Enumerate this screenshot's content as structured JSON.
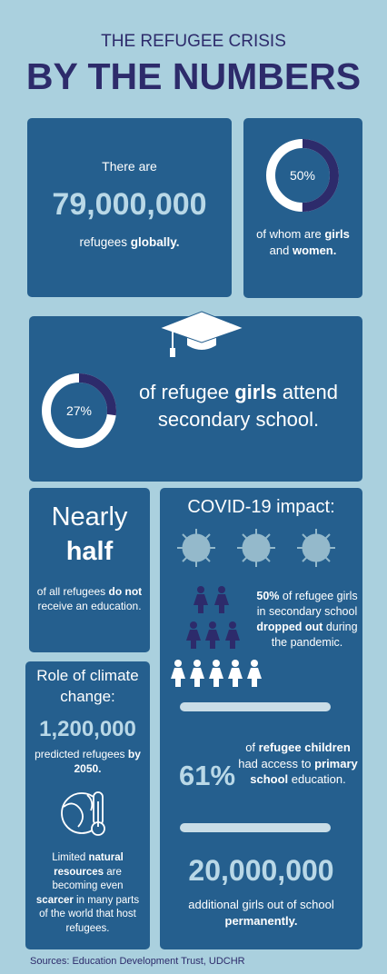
{
  "header": {
    "subtitle": "THE REFUGEE CRISIS",
    "title": "BY THE NUMBERS"
  },
  "refugees": {
    "intro": "There are",
    "number": "79,000,000",
    "text": [
      "refugees",
      "globally."
    ]
  },
  "women_share": {
    "donut": {
      "value": 50,
      "label": "50%"
    },
    "text": [
      "of whom are",
      "girls",
      "and",
      "women."
    ]
  },
  "secondary": {
    "donut": {
      "value": 27,
      "label": "27%"
    },
    "text": [
      "of refugee",
      "girls",
      "attend secondary school."
    ]
  },
  "education": {
    "headline": [
      "Nearly",
      "half"
    ],
    "text": [
      "of all refugees",
      "do not",
      "receive an education."
    ]
  },
  "climate": {
    "heading": "Role of climate change:",
    "number": "1,200,000",
    "text": [
      "predicted refugees",
      "by 2050."
    ],
    "note": [
      "Limited",
      "natural resources",
      "are becoming even",
      "scarcer",
      "in many parts of the world that host refugees."
    ]
  },
  "covid": {
    "heading": "COVID-19 impact:",
    "dropout": [
      "50%",
      "of refugee girls in secondary school",
      "dropped out",
      "during the pandemic."
    ],
    "primary": {
      "number": "61%",
      "text": [
        "of",
        "refugee children",
        "had access to",
        "primary school",
        "education."
      ]
    },
    "girls": {
      "number": "20,000,000",
      "text": [
        "additional girls out of school",
        "permanently."
      ]
    }
  },
  "footer": {
    "sources": "Sources: Education Development Trust, UDCHR"
  }
}
